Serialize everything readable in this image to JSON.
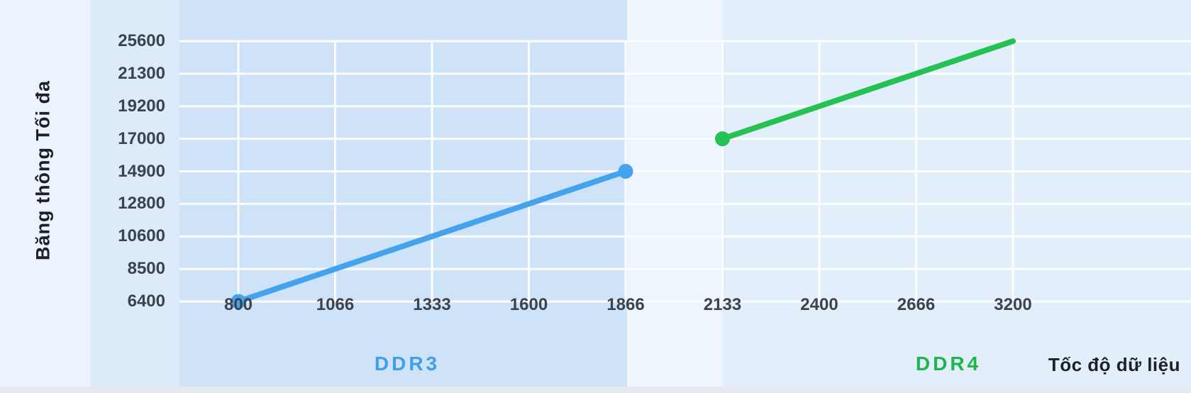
{
  "chart_data": {
    "type": "line",
    "title": "",
    "xlabel": "Tốc độ dữ liệu",
    "ylabel": "Băng thông Tối đa",
    "x_ticks": [
      800,
      1066,
      1333,
      1600,
      1866,
      2133,
      2400,
      2666,
      3200
    ],
    "y_ticks": [
      6400,
      8500,
      10600,
      12800,
      14900,
      17000,
      19200,
      21300,
      25600
    ],
    "axis_note": "both axes are categorical with evenly spaced ticks",
    "grid": true,
    "legend_position": "below-axis",
    "series": [
      {
        "name": "DDR3",
        "color": "#45a3ee",
        "points": [
          [
            800,
            6400
          ],
          [
            1066,
            8500
          ],
          [
            1333,
            10600
          ],
          [
            1600,
            12800
          ],
          [
            1866,
            14900
          ]
        ],
        "markers_at": [
          "first",
          "last"
        ]
      },
      {
        "name": "DDR4",
        "color": "#25c153",
        "points": [
          [
            2133,
            17000
          ],
          [
            2400,
            19200
          ],
          [
            2666,
            21300
          ],
          [
            3200,
            25600
          ]
        ],
        "markers_at": [
          "first"
        ]
      }
    ]
  },
  "labels": {
    "y_axis_title": "Băng thông Tối đa",
    "x_axis_title": "Tốc độ dữ liệu",
    "ddr3": "DDR3",
    "ddr4": "DDR4"
  },
  "colors": {
    "ddr3_line": "#45a3ee",
    "ddr3_label": "#3f9fea",
    "ddr4_line": "#25c153",
    "ddr4_label": "#1eb54d",
    "band_ddr3": "#cee3f8",
    "band_ddr4": "#e3eefb",
    "band_ylabels": "#ddeafa",
    "band_gap": "#eef5fd",
    "page_background": "#ecf3fc",
    "gridline": "#ffffff",
    "tick_text": "#3d434d",
    "title_text": "#1d2127"
  }
}
